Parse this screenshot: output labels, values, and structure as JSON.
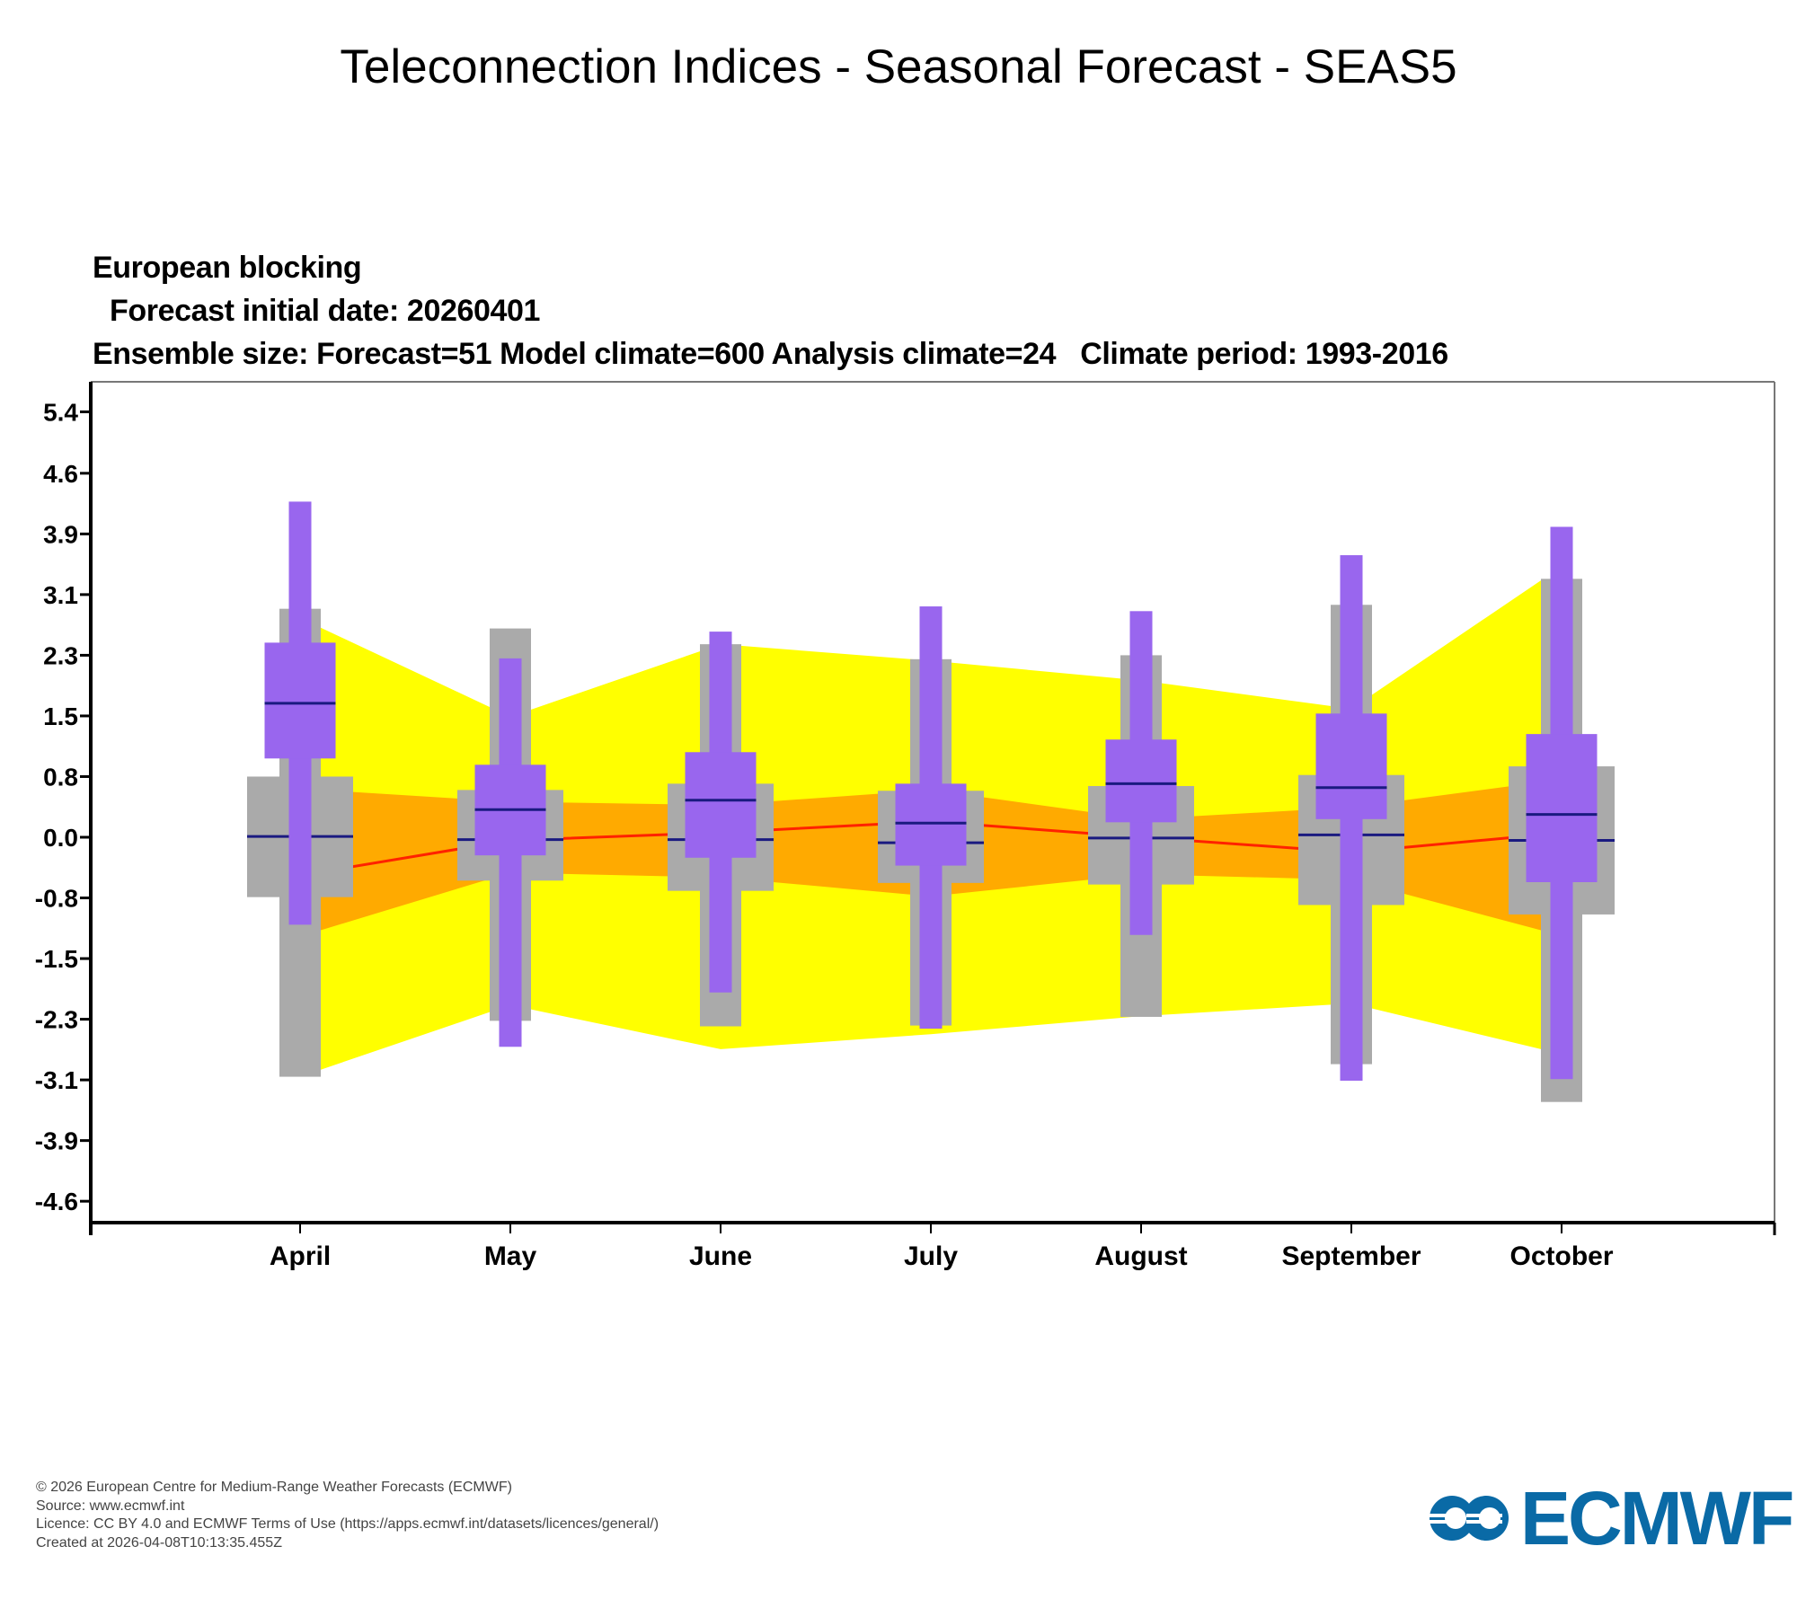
{
  "header": {
    "title": "Teleconnection Indices - Seasonal Forecast - SEAS5"
  },
  "plot_info": {
    "index_name": "European blocking",
    "initial_date_line": " Forecast initial date: 20260401",
    "ensemble_line": "Ensemble size: Forecast=51 Model climate=600 Analysis climate=24   Climate period: 1993-2016"
  },
  "chart_data": {
    "type": "box",
    "title": "European blocking",
    "xlabel": "",
    "ylabel": "",
    "categories": [
      "April",
      "May",
      "June",
      "July",
      "August",
      "September",
      "October"
    ],
    "ylim": [
      -5.0,
      6.0
    ],
    "y_ticks": [
      "5.4",
      "4.6",
      "3.9",
      "3.1",
      "2.3",
      "1.5",
      "0.8",
      "0.0",
      "-0.8",
      "-1.5",
      "-2.3",
      "-3.1",
      "-3.9",
      "-4.6"
    ],
    "y_tick_values": [
      5.4,
      4.62,
      3.85,
      3.08,
      2.31,
      1.54,
      0.77,
      0.0,
      -0.77,
      -1.54,
      -2.31,
      -3.08,
      -3.85,
      -4.62
    ],
    "grid": false,
    "series": [
      {
        "name": "Model climate (grey box-and-whisker)",
        "color": "#aaaaaa",
        "median_color": "#1a1a80",
        "min": [
          -3.04,
          -2.33,
          -2.4,
          -2.39,
          -2.28,
          -2.88,
          -3.36
        ],
        "q1": [
          -0.76,
          -0.55,
          -0.68,
          -0.58,
          -0.6,
          -0.86,
          -0.98
        ],
        "median": [
          0.01,
          -0.03,
          -0.03,
          -0.07,
          -0.01,
          0.03,
          -0.04
        ],
        "q3": [
          0.77,
          0.6,
          0.68,
          0.59,
          0.65,
          0.79,
          0.9
        ],
        "max": [
          2.9,
          2.65,
          2.45,
          2.26,
          2.31,
          2.95,
          3.28
        ]
      },
      {
        "name": "Forecast (purple box-and-whisker)",
        "color": "#9966ee",
        "median_color": "#1a1a80",
        "min": [
          -1.11,
          -2.66,
          -1.97,
          -2.43,
          -1.24,
          -3.09,
          -3.07
        ],
        "q1": [
          1.0,
          -0.23,
          -0.26,
          -0.36,
          0.19,
          0.23,
          -0.57
        ],
        "median": [
          1.7,
          0.35,
          0.47,
          0.18,
          0.68,
          0.63,
          0.29
        ],
        "q3": [
          2.47,
          0.92,
          1.08,
          0.68,
          1.24,
          1.57,
          1.31
        ],
        "max": [
          4.26,
          2.27,
          2.61,
          2.93,
          2.87,
          3.58,
          3.94
        ]
      },
      {
        "name": "Analysis climate outer range (yellow band)",
        "color": "#ffff00",
        "upper": [
          2.66,
          1.53,
          2.45,
          2.24,
          1.99,
          1.63,
          3.26
        ],
        "lower": [
          -2.95,
          -2.13,
          -2.69,
          -2.5,
          -2.27,
          -2.11,
          -2.69
        ]
      },
      {
        "name": "Analysis climate inner range (orange band)",
        "color": "#ffaa00",
        "upper": [
          0.6,
          0.45,
          0.41,
          0.6,
          0.23,
          0.38,
          0.7
        ],
        "lower": [
          -1.18,
          -0.45,
          -0.51,
          -0.75,
          -0.47,
          -0.54,
          -1.18
        ]
      },
      {
        "name": "Analysis climate median (red line)",
        "color": "#ff2200",
        "values": [
          -0.44,
          -0.04,
          0.06,
          0.2,
          0.0,
          -0.19,
          0.03
        ]
      }
    ]
  },
  "footer": {
    "copyright": "© 2026 European Centre for Medium-Range Weather Forecasts (ECMWF)",
    "source": "Source: www.ecmwf.int",
    "licence": "Licence: CC BY 4.0 and ECMWF Terms of Use (https://apps.ecmwf.int/datasets/licences/general/)",
    "created": "Created at 2026-04-08T10:13:35.455Z"
  },
  "logo": {
    "text": "ECMWF",
    "color": "#0a6aa6"
  }
}
